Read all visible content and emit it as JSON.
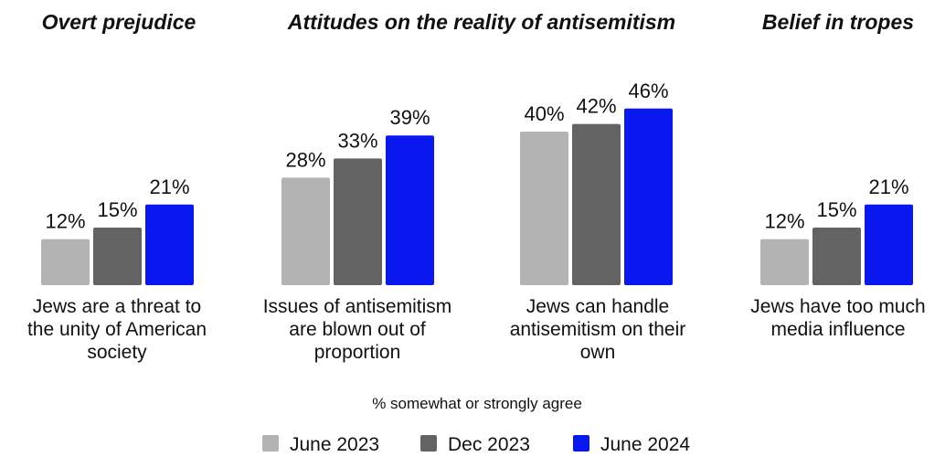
{
  "headings": [
    "Overt prejudice",
    "Attitudes on the reality of antisemitism",
    "Belief in tropes"
  ],
  "caption": "% somewhat or strongly agree",
  "colors": {
    "June 2023": "#b3b3b3",
    "Dec 2023": "#636363",
    "June 2024": "#0a18f0"
  },
  "chart_data": {
    "type": "bar",
    "categories": [
      [
        "Jews are a threat to",
        "the unity of American",
        "society"
      ],
      [
        "Issues of antisemitism",
        "are blown out of",
        "proportion"
      ],
      [
        "Jews can handle",
        "antisemitism on their",
        "own"
      ],
      [
        "Jews have too much",
        "media influence"
      ]
    ],
    "series": [
      {
        "name": "June 2023",
        "values": [
          12,
          28,
          40,
          12
        ]
      },
      {
        "name": "Dec 2023",
        "values": [
          15,
          33,
          42,
          15
        ]
      },
      {
        "name": "June 2024",
        "values": [
          21,
          39,
          46,
          21
        ]
      }
    ],
    "value_suffix": "%",
    "legend": [
      "June 2023",
      "Dec 2023",
      "June 2024"
    ],
    "legend_position": "bottom",
    "grid": false
  }
}
